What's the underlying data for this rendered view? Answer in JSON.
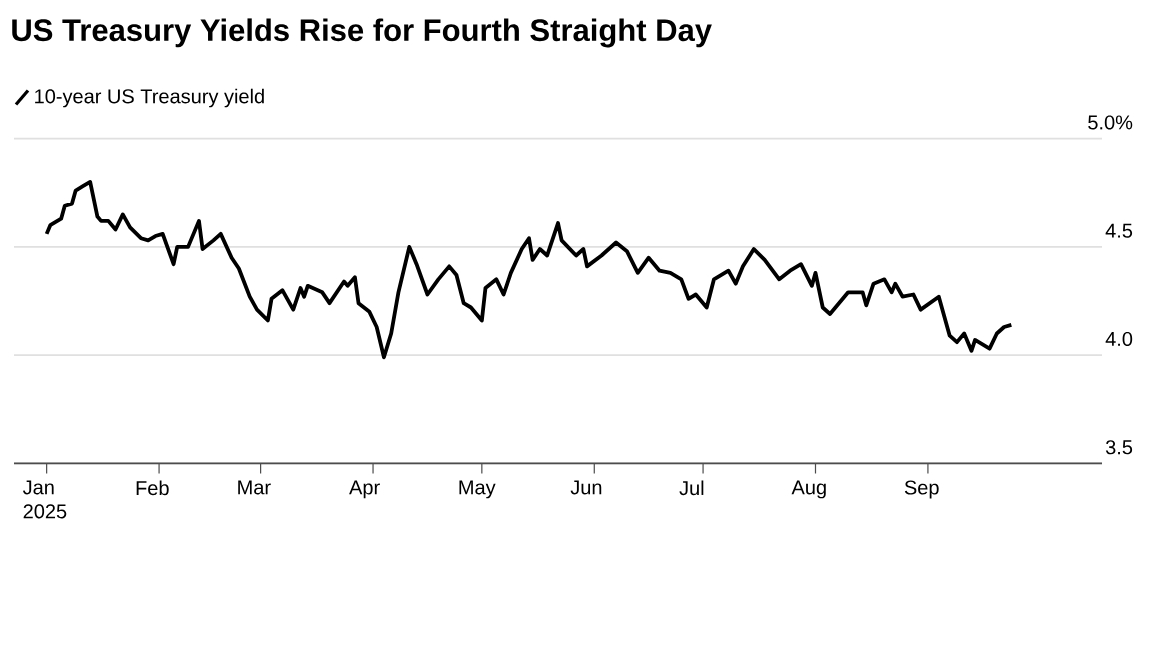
{
  "chart_data": {
    "type": "line",
    "title": "US Treasury Yields Rise for Fourth Straight Day",
    "legend": "top left",
    "grid": "y",
    "xlim": [
      "2024-12-23",
      "2025-10-19"
    ],
    "xticks": [
      {
        "value": "2025-01-01",
        "label": "Jan 2025"
      },
      {
        "value": "2025-02-01",
        "label": "Feb"
      },
      {
        "value": "2025-03-01",
        "label": "Mar"
      },
      {
        "value": "2025-04-01",
        "label": "Apr"
      },
      {
        "value": "2025-05-01",
        "label": "May"
      },
      {
        "value": "2025-06-01",
        "label": "Jun"
      },
      {
        "value": "2025-07-01",
        "label": "Jul"
      },
      {
        "value": "2025-08-01",
        "label": "Aug"
      },
      {
        "value": "2025-09-01",
        "label": "Sep"
      }
    ],
    "ylim": [
      3.5,
      5.0
    ],
    "yticks": [
      3.5,
      {
        "value": 4,
        "label": "4.0"
      },
      4.5,
      {
        "value": 5,
        "label": "5.0%"
      }
    ],
    "x": [
      "2025-01-01",
      "2025-01-02",
      "2025-01-05",
      "2025-01-06",
      "2025-01-08",
      "2025-01-09",
      "2025-01-11",
      "2025-01-13",
      "2025-01-15",
      "2025-01-16",
      "2025-01-18",
      "2025-01-20",
      "2025-01-22",
      "2025-01-24",
      "2025-01-27",
      "2025-01-29",
      "2025-01-31",
      "2025-02-02",
      "2025-02-05",
      "2025-02-06",
      "2025-02-09",
      "2025-02-12",
      "2025-02-13",
      "2025-02-16",
      "2025-02-18",
      "2025-02-21",
      "2025-02-23",
      "2025-02-26",
      "2025-02-28",
      "2025-03-03",
      "2025-03-04",
      "2025-03-07",
      "2025-03-10",
      "2025-03-12",
      "2025-03-13",
      "2025-03-14",
      "2025-03-18",
      "2025-03-20",
      "2025-03-24",
      "2025-03-25",
      "2025-03-27",
      "2025-03-28",
      "2025-03-31",
      "2025-04-02",
      "2025-04-04",
      "2025-04-06",
      "2025-04-08",
      "2025-04-11",
      "2025-04-13",
      "2025-04-16",
      "2025-04-19",
      "2025-04-22",
      "2025-04-24",
      "2025-04-26",
      "2025-04-28",
      "2025-05-01",
      "2025-05-02",
      "2025-05-05",
      "2025-05-07",
      "2025-05-09",
      "2025-05-12",
      "2025-05-14",
      "2025-05-15",
      "2025-05-17",
      "2025-05-19",
      "2025-05-22",
      "2025-05-23",
      "2025-05-27",
      "2025-05-29",
      "2025-05-30",
      "2025-06-03",
      "2025-06-07",
      "2025-06-10",
      "2025-06-13",
      "2025-06-16",
      "2025-06-19",
      "2025-06-22",
      "2025-06-25",
      "2025-06-27",
      "2025-06-29",
      "2025-07-02",
      "2025-07-04",
      "2025-07-08",
      "2025-07-10",
      "2025-07-12",
      "2025-07-15",
      "2025-07-18",
      "2025-07-22",
      "2025-07-25",
      "2025-07-28",
      "2025-07-31",
      "2025-08-01",
      "2025-08-03",
      "2025-08-05",
      "2025-08-10",
      "2025-08-14",
      "2025-08-15",
      "2025-08-17",
      "2025-08-20",
      "2025-08-22",
      "2025-08-23",
      "2025-08-25",
      "2025-08-28",
      "2025-08-30",
      "2025-09-04",
      "2025-09-07",
      "2025-09-09",
      "2025-09-11",
      "2025-09-13",
      "2025-09-14",
      "2025-09-18",
      "2025-09-20",
      "2025-09-22",
      "2025-09-24"
    ],
    "series": [
      {
        "name": "10-year US Treasury yield",
        "color": "#000000",
        "values": [
          4.56,
          4.6,
          4.63,
          4.69,
          4.7,
          4.76,
          4.78,
          4.8,
          4.64,
          4.62,
          4.62,
          4.58,
          4.65,
          4.59,
          4.54,
          4.53,
          4.55,
          4.56,
          4.42,
          4.5,
          4.5,
          4.62,
          4.49,
          4.53,
          4.56,
          4.45,
          4.4,
          4.27,
          4.21,
          4.16,
          4.26,
          4.3,
          4.21,
          4.31,
          4.27,
          4.32,
          4.29,
          4.24,
          4.34,
          4.32,
          4.36,
          4.24,
          4.2,
          4.13,
          3.99,
          4.1,
          4.29,
          4.5,
          4.42,
          4.28,
          4.35,
          4.41,
          4.37,
          4.24,
          4.22,
          4.16,
          4.31,
          4.35,
          4.28,
          4.38,
          4.49,
          4.54,
          4.44,
          4.49,
          4.46,
          4.61,
          4.53,
          4.46,
          4.49,
          4.41,
          4.46,
          4.52,
          4.48,
          4.38,
          4.45,
          4.39,
          4.38,
          4.35,
          4.26,
          4.28,
          4.22,
          4.35,
          4.39,
          4.33,
          4.41,
          4.49,
          4.44,
          4.35,
          4.39,
          4.42,
          4.32,
          4.38,
          4.22,
          4.19,
          4.29,
          4.29,
          4.23,
          4.33,
          4.35,
          4.29,
          4.33,
          4.27,
          4.28,
          4.21,
          4.27,
          4.09,
          4.06,
          4.1,
          4.02,
          4.07,
          4.03,
          4.1,
          4.13,
          4.14
        ]
      }
    ]
  }
}
